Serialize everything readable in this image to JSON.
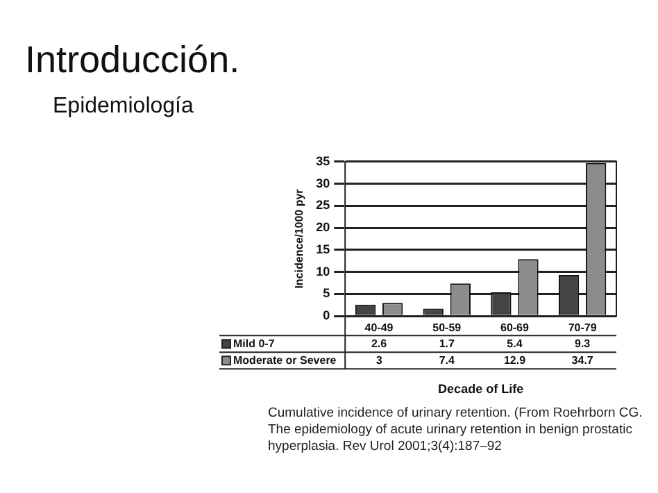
{
  "chart_data": {
    "type": "bar",
    "title": "Introducción.",
    "subtitle": "Epidemiología",
    "xlabel": "Decade of Life",
    "ylabel": "Incidence/1000 pyr",
    "categories": [
      "40-49",
      "50-59",
      "60-69",
      "70-79"
    ],
    "series": [
      {
        "name": "Mild 0-7",
        "color": "#444444",
        "values": [
          2.6,
          1.7,
          5.4,
          9.3
        ]
      },
      {
        "name": "Moderate or Severe",
        "color": "#8c8c8c",
        "values": [
          3,
          7.4,
          12.9,
          34.7
        ]
      }
    ],
    "ylim": [
      0,
      35
    ],
    "yticks": [
      0,
      5,
      10,
      15,
      20,
      25,
      30,
      35
    ],
    "grid": "y",
    "legend": "bottom",
    "data_labels": true,
    "annotations": [
      "Cumulative incidence of urinary retention. (From Roehrborn CG. The epidemiology of acute urinary retention in benign prostatic hyperplasia. Rev Urol 2001;3(4):187–92"
    ]
  }
}
